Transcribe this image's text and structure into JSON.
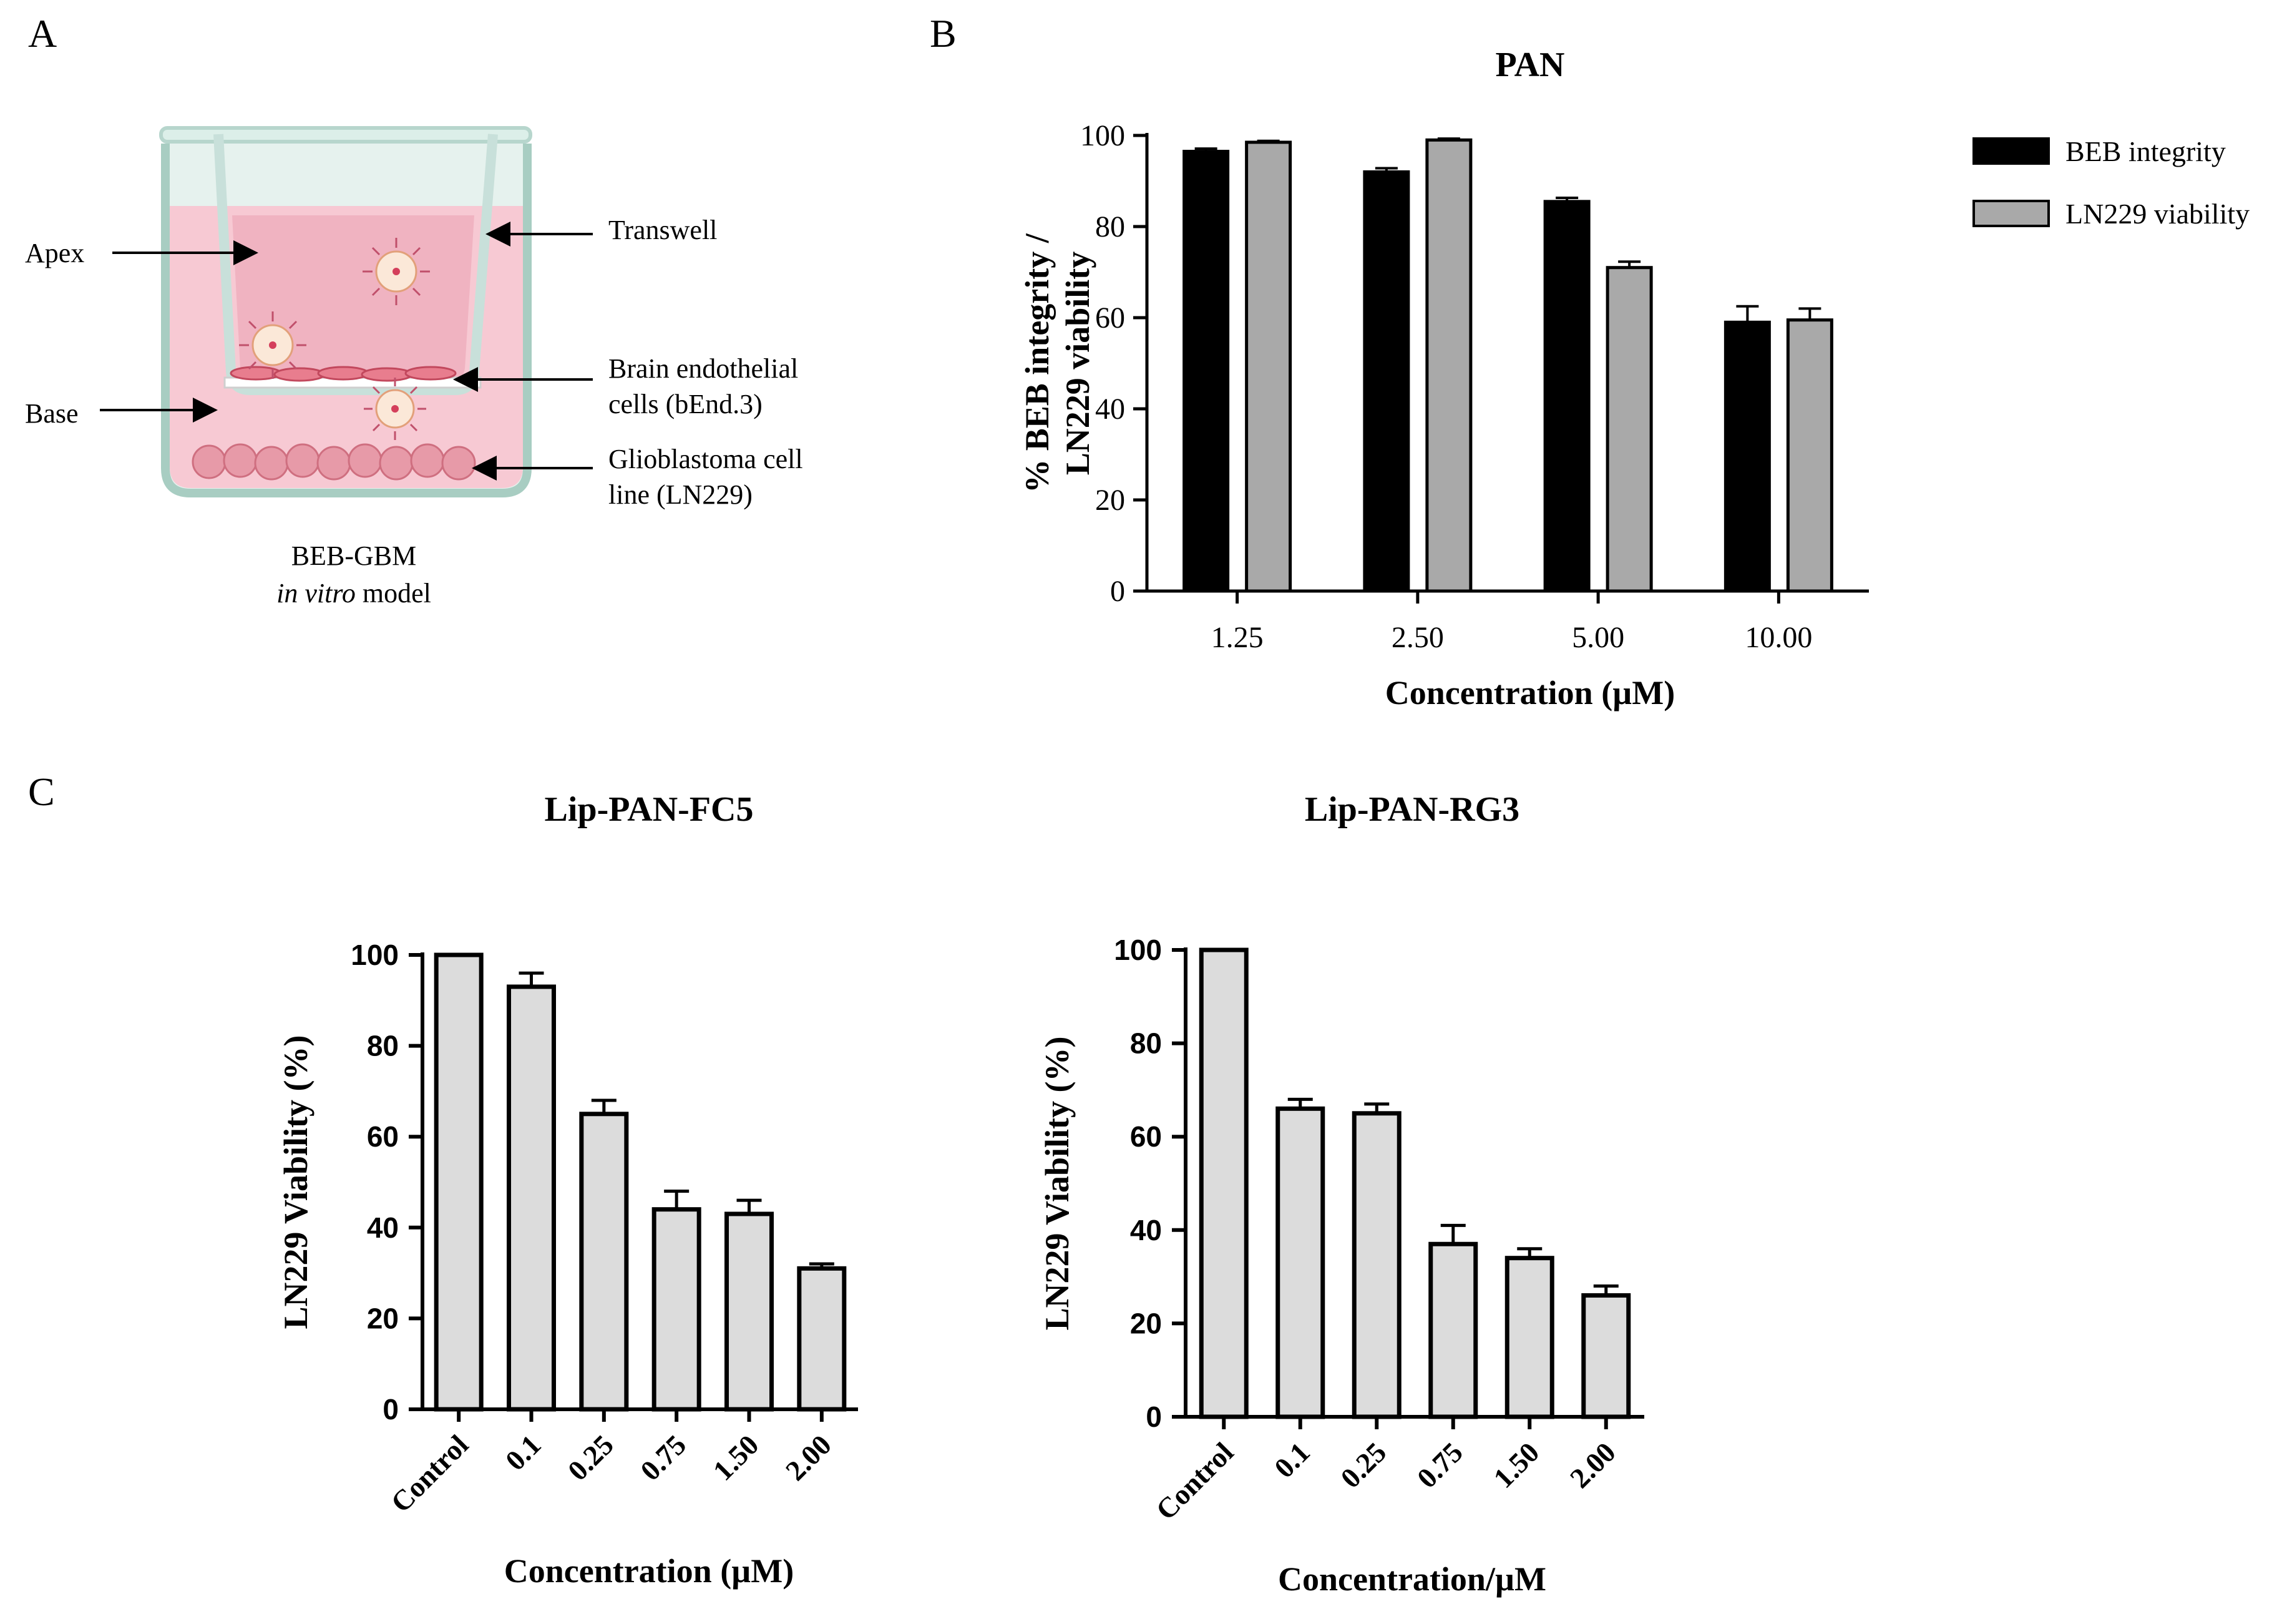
{
  "panels": {
    "a": "A",
    "b": "B",
    "c": "C"
  },
  "diagram": {
    "apex": "Apex",
    "base": "Base",
    "transwell": "Transwell",
    "endothelial_line1": "Brain endothelial",
    "endothelial_line2": "cells (bEnd.3)",
    "glioblastoma_line1": "Glioblastoma cell",
    "glioblastoma_line2": "line (LN229)",
    "model_line1": "BEB-GBM",
    "model_italic": "in vitro",
    "model_rest": " model"
  },
  "colors": {
    "black_bar": "#000000",
    "grey_bar": "#a9a9a9",
    "light_bar": "#dcdcdc"
  },
  "chart_data": [
    {
      "id": "B",
      "type": "bar",
      "title": "PAN",
      "xlabel": "Concentration (µM)",
      "ylabel_line1": "% BEB integrity /",
      "ylabel_line2": "LN229 viability",
      "ylim": [
        0,
        100
      ],
      "yticks": [
        "0",
        "20",
        "40",
        "60",
        "80",
        "100"
      ],
      "categories": [
        "1.25",
        "2.50",
        "5.00",
        "10.00"
      ],
      "series": [
        {
          "name": "BEB integrity",
          "color": "#000000",
          "values": [
            96.5,
            92,
            85.5,
            59
          ],
          "errors": [
            0.6,
            0.8,
            0.8,
            3.5
          ]
        },
        {
          "name": "LN229 viability",
          "color": "#a9a9a9",
          "values": [
            98.5,
            99,
            71,
            59.5
          ],
          "errors": [
            0.3,
            0.3,
            1.3,
            2.5
          ]
        }
      ],
      "legend": "top-right"
    },
    {
      "id": "C1",
      "type": "bar",
      "title": "Lip-PAN-FC5",
      "xlabel": "Concentration (µM)",
      "ylabel": "LN229 Viability (%)",
      "ylim": [
        0,
        100
      ],
      "yticks": [
        "0",
        "20",
        "40",
        "60",
        "80",
        "100"
      ],
      "categories": [
        "Control",
        "0.1",
        "0.25",
        "0.75",
        "1.50",
        "2.00"
      ],
      "series": [
        {
          "name": "LN229 viability",
          "color": "#dcdcdc",
          "values": [
            100,
            93,
            65,
            44,
            43,
            31
          ],
          "errors": [
            0,
            3,
            3,
            4,
            3,
            1
          ]
        }
      ]
    },
    {
      "id": "C2",
      "type": "bar",
      "title": "Lip-PAN-RG3",
      "xlabel": "Concentration/µM",
      "ylabel": "LN229 Viability (%)",
      "ylim": [
        0,
        100
      ],
      "yticks": [
        "0",
        "20",
        "40",
        "60",
        "80",
        "100"
      ],
      "categories": [
        "Control",
        "0.1",
        "0.25",
        "0.75",
        "1.50",
        "2.00"
      ],
      "series": [
        {
          "name": "LN229 viability",
          "color": "#dcdcdc",
          "values": [
            100,
            66,
            65,
            37,
            34,
            26
          ],
          "errors": [
            0,
            2,
            2,
            4,
            2,
            2
          ]
        }
      ]
    }
  ]
}
